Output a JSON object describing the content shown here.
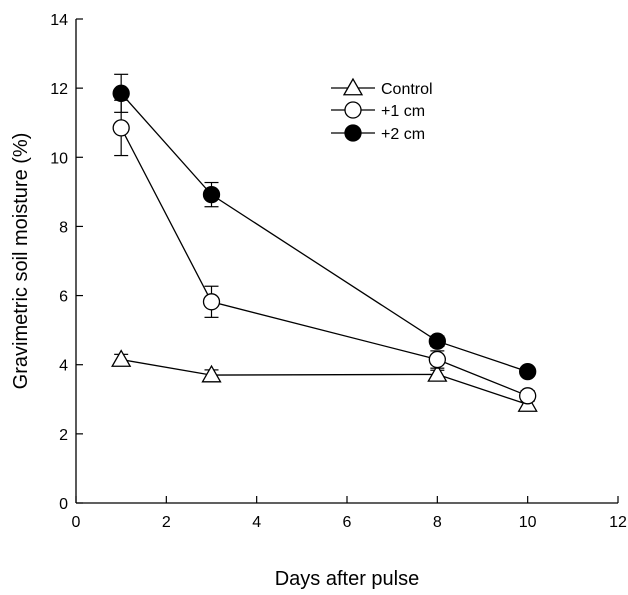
{
  "chart_data": {
    "type": "line",
    "title": "",
    "xlabel": "Days after pulse",
    "ylabel": "Gravimetric soil moisture (%)",
    "xlim": [
      0,
      12
    ],
    "ylim": [
      0,
      14
    ],
    "x_ticks": [
      0,
      2,
      4,
      6,
      8,
      10,
      12
    ],
    "y_ticks": [
      0,
      2,
      4,
      6,
      8,
      10,
      12,
      14
    ],
    "grid": false,
    "legend_position": "top-right",
    "x": [
      1,
      3,
      8,
      10
    ],
    "series": [
      {
        "name": "Control",
        "marker": "open-triangle",
        "values": [
          4.15,
          3.7,
          3.72,
          2.85
        ],
        "errors": [
          0.15,
          0.15,
          0.12,
          0.1
        ]
      },
      {
        "name": "+1 cm",
        "marker": "open-circle",
        "values": [
          10.85,
          5.82,
          4.15,
          3.1
        ],
        "errors": [
          0.8,
          0.45,
          0.25,
          0.15
        ]
      },
      {
        "name": "+2 cm",
        "marker": "filled-circle",
        "values": [
          11.85,
          8.92,
          4.68,
          3.8
        ],
        "errors": [
          0.55,
          0.35,
          0.15,
          0.12
        ]
      }
    ]
  }
}
